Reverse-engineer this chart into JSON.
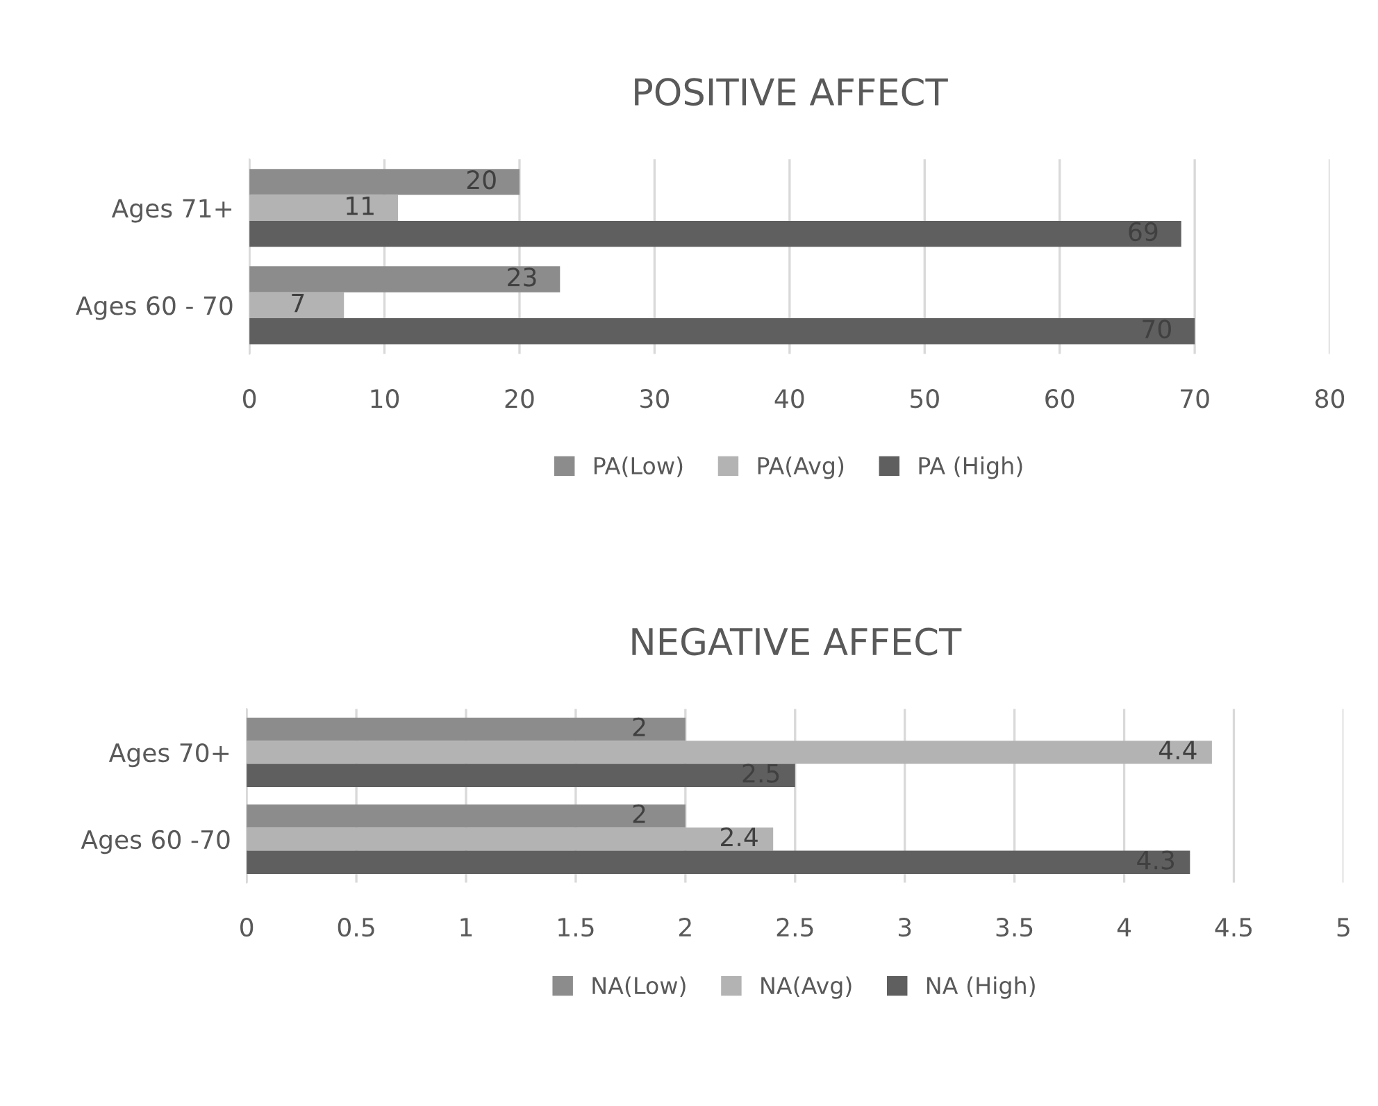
{
  "chart_data": [
    {
      "type": "bar",
      "orientation": "horizontal",
      "title": "POSITIVE AFFECT",
      "categories": [
        "Ages 71+",
        "Ages 60 - 70"
      ],
      "series": [
        {
          "name": "PA(Low)",
          "color": "#8c8c8c",
          "values": [
            20,
            23
          ]
        },
        {
          "name": "PA(Avg)",
          "color": "#b3b3b3",
          "values": [
            11,
            7
          ]
        },
        {
          "name": "PA (High)",
          "color": "#5f5f5f",
          "values": [
            69,
            70
          ]
        }
      ],
      "xlim": [
        0,
        80
      ],
      "xticks": [
        0,
        10,
        20,
        30,
        40,
        50,
        60,
        70,
        80
      ],
      "grid": "x",
      "legend": "bottom",
      "data_labels": true
    },
    {
      "type": "bar",
      "orientation": "horizontal",
      "title": "NEGATIVE AFFECT",
      "categories": [
        "Ages 70+",
        "Ages 60 -70"
      ],
      "series": [
        {
          "name": "NA(Low)",
          "color": "#8c8c8c",
          "values": [
            2,
            2
          ]
        },
        {
          "name": "NA(Avg)",
          "color": "#b3b3b3",
          "values": [
            4.4,
            2.4
          ]
        },
        {
          "name": "NA (High)",
          "color": "#5f5f5f",
          "values": [
            2.5,
            4.3
          ]
        }
      ],
      "xlim": [
        0,
        5
      ],
      "xticks": [
        0,
        0.5,
        1,
        1.5,
        2,
        2.5,
        3,
        3.5,
        4,
        4.5,
        5
      ],
      "grid": "x",
      "legend": "bottom",
      "data_labels": true
    }
  ]
}
